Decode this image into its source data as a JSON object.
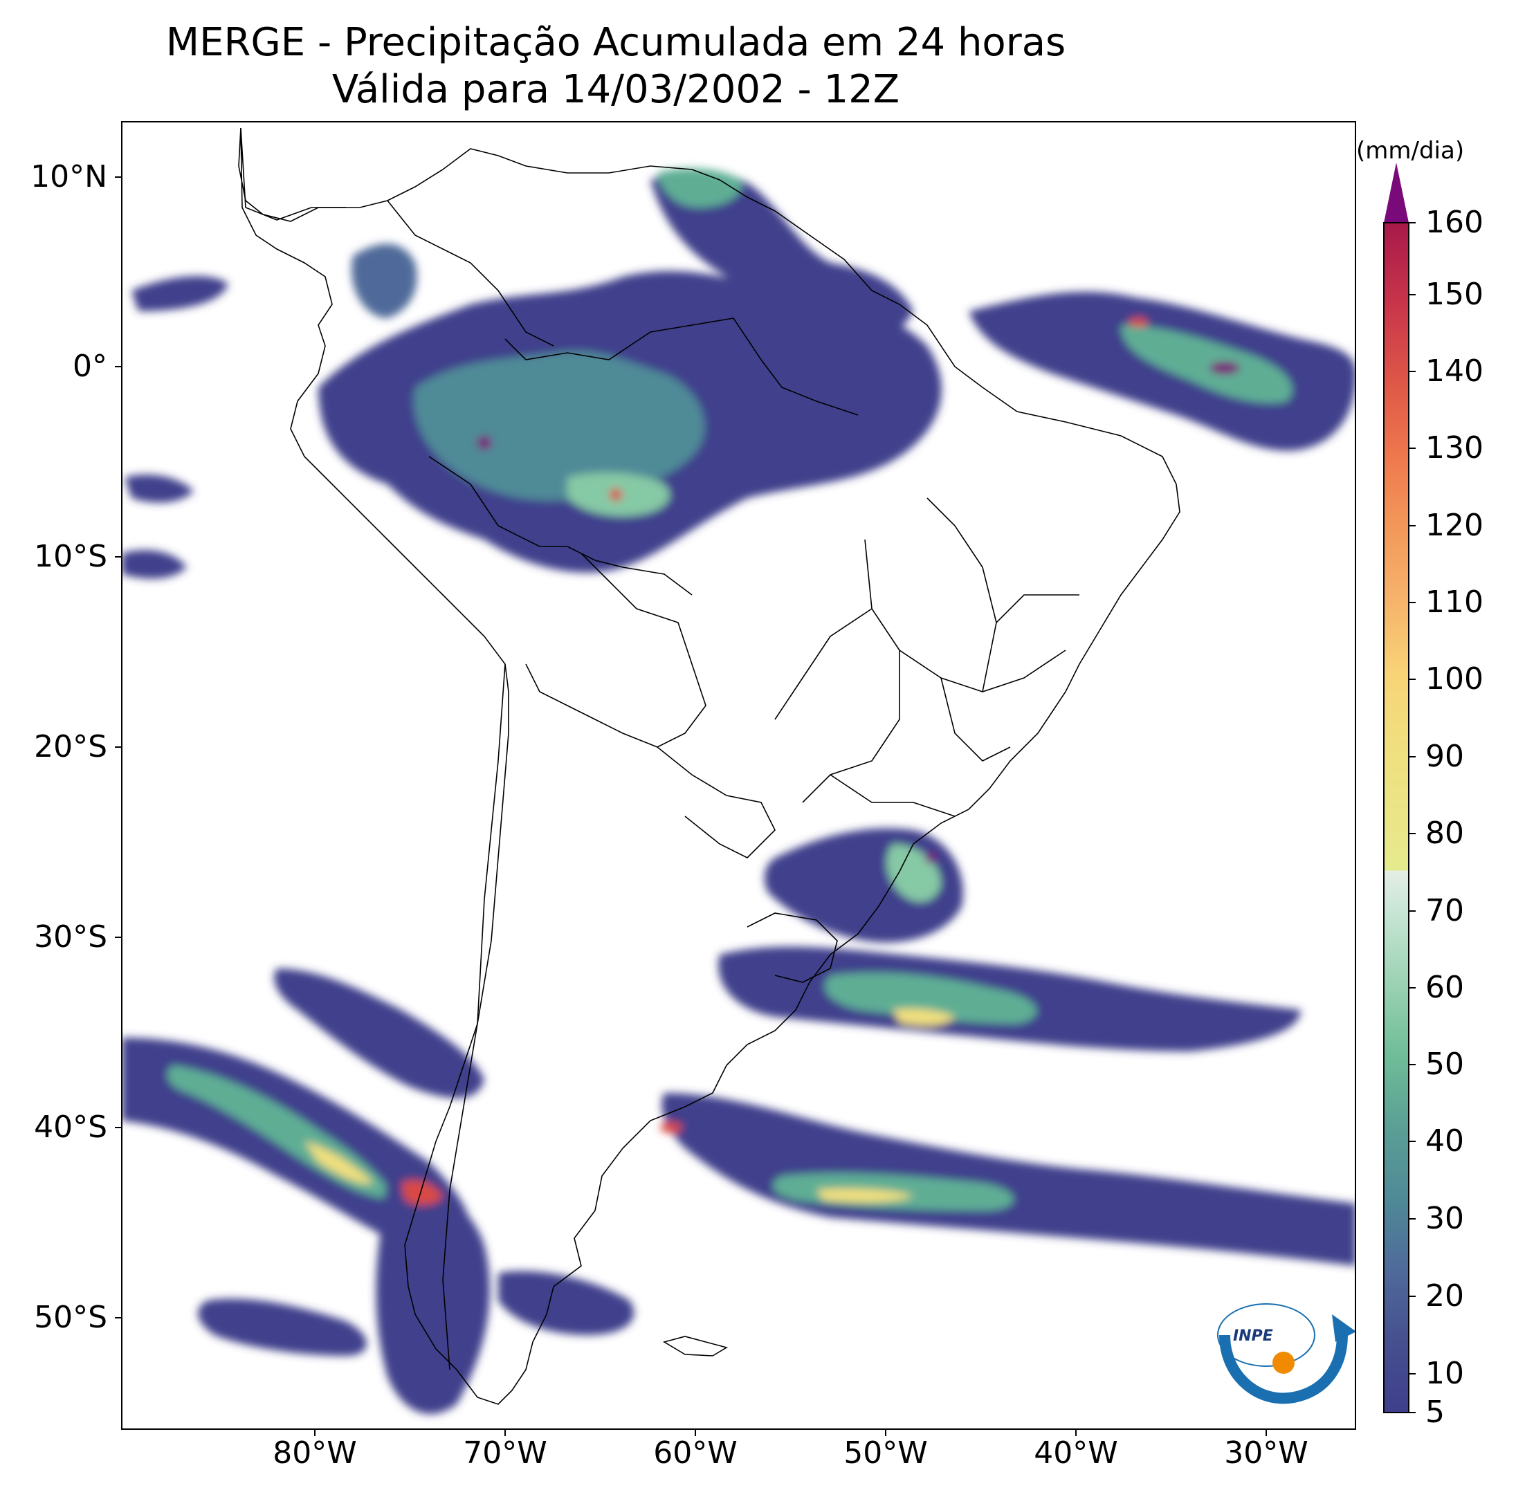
{
  "title": {
    "line1": "MERGE - Precipitação Acumulada em 24 horas",
    "line2": "Válida para 14/03/2002 - 12Z"
  },
  "axes": {
    "lat_ticks": [
      "10°N",
      "0°",
      "10°S",
      "20°S",
      "30°S",
      "40°S",
      "50°S"
    ],
    "lon_ticks": [
      "80°W",
      "70°W",
      "60°W",
      "50°W",
      "40°W",
      "30°W"
    ]
  },
  "colorbar": {
    "unit": "(mm/dia)",
    "tick_labels": [
      "5",
      "10",
      "20",
      "30",
      "40",
      "50",
      "60",
      "70",
      "80",
      "90",
      "100",
      "110",
      "120",
      "130",
      "140",
      "150",
      "160"
    ],
    "extend": "max",
    "colors": {
      "5": "#3f3f8c",
      "15": "#4f6a9a",
      "25": "#4f8a97",
      "35": "#5fae94",
      "45": "#86c9a5",
      "55": "#b7dfc9",
      "65": "#e4eee5",
      "75": "#ece58a",
      "95": "#f7d57a",
      "105": "#f6b46b",
      "125": "#ef8050",
      "145": "#d94a45",
      "155": "#b01c48",
      "over": "#7a0a7a"
    }
  },
  "logo": {
    "text": "INPE"
  }
}
